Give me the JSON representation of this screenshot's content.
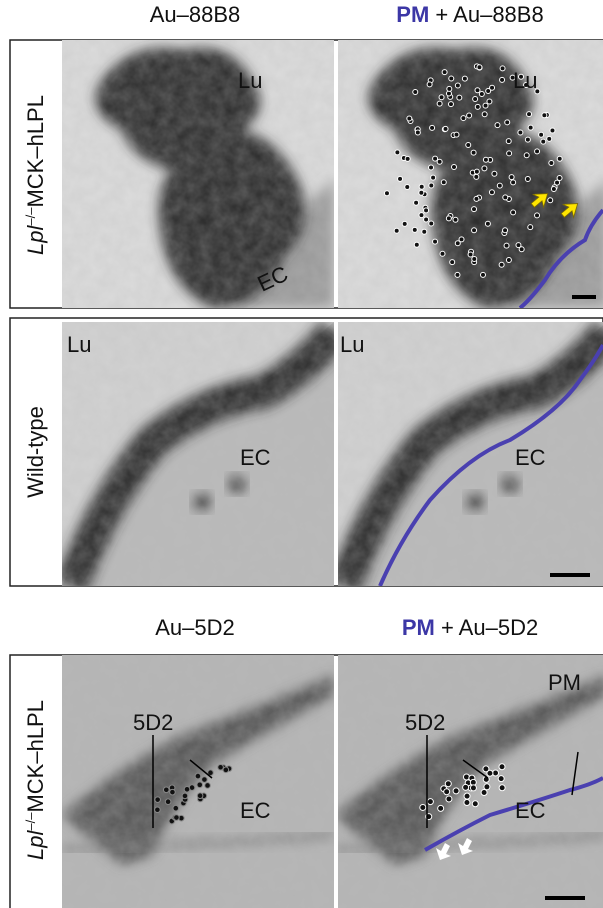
{
  "section1": {
    "title_left": "Au–88B8",
    "title_right_prefix": "PM",
    "title_right_suffix": "+ Au–88B8",
    "row_label": {
      "gene": "Lpl",
      "superscript": "–/–",
      "rest": "MCK–hLPL"
    },
    "left_labels": [
      "Lu",
      "EC"
    ],
    "right_labels": [
      "Lu"
    ]
  },
  "section2": {
    "row_label": "Wild-type",
    "left_labels": [
      "Lu",
      "EC"
    ],
    "right_labels": [
      "Lu",
      "EC"
    ]
  },
  "section3": {
    "title_left": "Au–5D2",
    "title_right_prefix": "PM",
    "title_right_suffix": "+ Au–5D2",
    "row_label": {
      "gene": "Lpl",
      "superscript": "–/–",
      "rest": "MCK–hLPL"
    },
    "left_labels": [
      "5D2",
      "EC"
    ],
    "right_labels": [
      "PM",
      "5D2",
      "EC"
    ]
  }
}
